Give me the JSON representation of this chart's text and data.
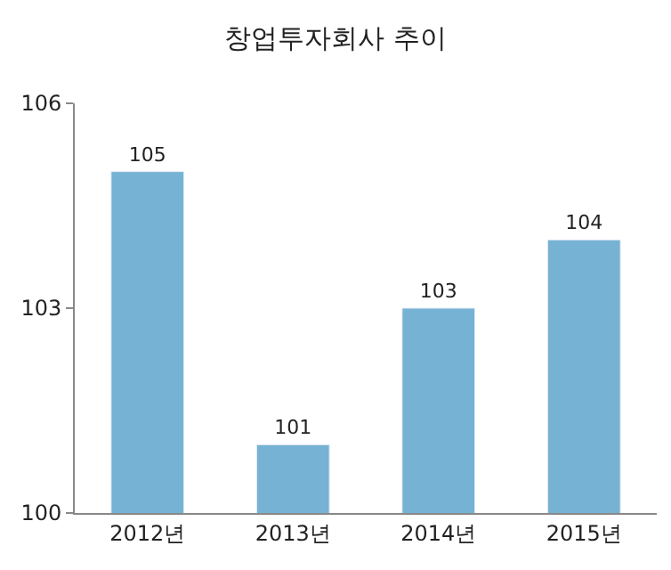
{
  "chart_data": {
    "type": "bar",
    "title": "창업투자회사 추이",
    "categories": [
      "2012년",
      "2013년",
      "2014년",
      "2015년"
    ],
    "values": [
      105,
      101,
      103,
      104
    ],
    "color": "#76b2d3",
    "ylim": [
      100,
      106
    ],
    "yticks": [
      100,
      103,
      106
    ],
    "data_labels": true
  }
}
